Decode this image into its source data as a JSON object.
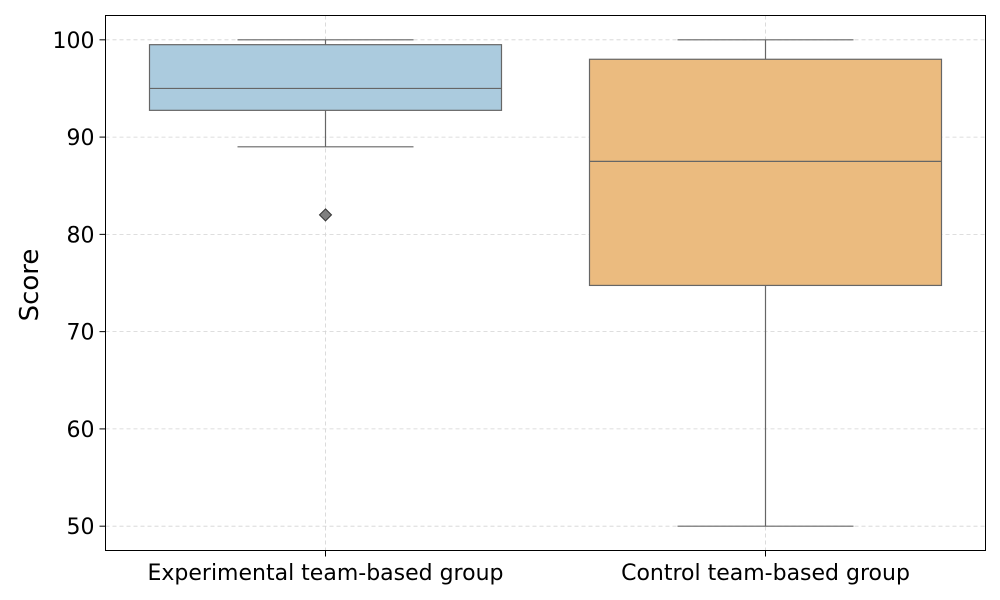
{
  "chart_data": {
    "type": "box",
    "title": "",
    "xlabel": "",
    "ylabel": "Score",
    "ylim": [
      47.5,
      102.5
    ],
    "yticks": [
      50,
      60,
      70,
      80,
      90,
      100
    ],
    "grid": true,
    "categories": [
      "Experimental team-based group",
      "Control team-based group"
    ],
    "boxes": [
      {
        "category": "Experimental team-based group",
        "color": "#abcbde",
        "whisker_low": 89,
        "q1": 92.75,
        "median": 95,
        "q3": 99.5,
        "whisker_high": 100,
        "outliers": [
          82
        ]
      },
      {
        "category": "Control team-based group",
        "color": "#ebbb7f",
        "whisker_low": 50,
        "q1": 74.75,
        "median": 87.5,
        "q3": 98,
        "whisker_high": 100,
        "outliers": []
      }
    ],
    "colors": {
      "box_edge": "#666666",
      "grid": "#d3d3d3",
      "outlier_fill": "#7f7f7f"
    }
  }
}
